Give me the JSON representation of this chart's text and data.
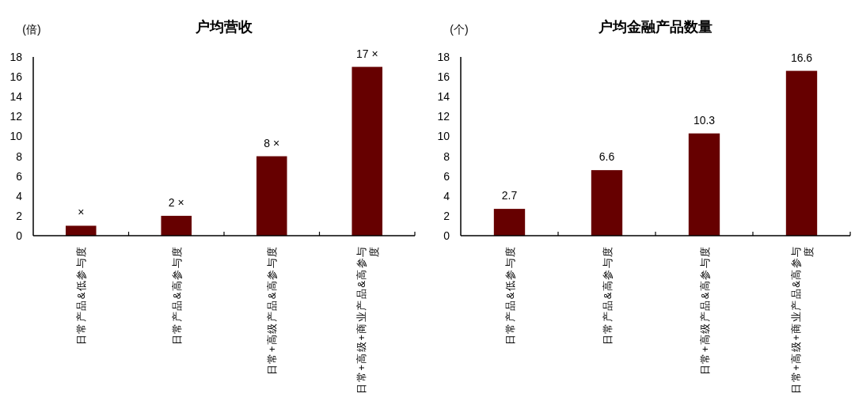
{
  "chart_data": [
    {
      "type": "bar",
      "title": "户均营收",
      "ylabel": "(倍)",
      "categories": [
        "日常产品&低参与度",
        "日常产品&高参与度",
        "日常+高级产品&高参与度",
        "日常+高级+商业产品&高参与度"
      ],
      "values": [
        1,
        2,
        8,
        17
      ],
      "value_labels": [
        "×",
        "2 ×",
        "8 ×",
        "17 ×"
      ],
      "color": "#660000",
      "ylim": [
        0,
        18
      ],
      "yticks": [
        0,
        2,
        4,
        6,
        8,
        10,
        12,
        14,
        16,
        18
      ]
    },
    {
      "type": "bar",
      "title": "户均金融产品数量",
      "ylabel": "(个)",
      "categories": [
        "日常产品&低参与度",
        "日常产品&高参与度",
        "日常+高级产品&高参与度",
        "日常+高级+商业产品&高参与度"
      ],
      "values": [
        2.7,
        6.6,
        10.3,
        16.6
      ],
      "data_labels": true,
      "color": "#660000",
      "ylim": [
        0,
        18
      ],
      "yticks": [
        0,
        2,
        4,
        6,
        8,
        10,
        12,
        14,
        16,
        18
      ]
    }
  ]
}
